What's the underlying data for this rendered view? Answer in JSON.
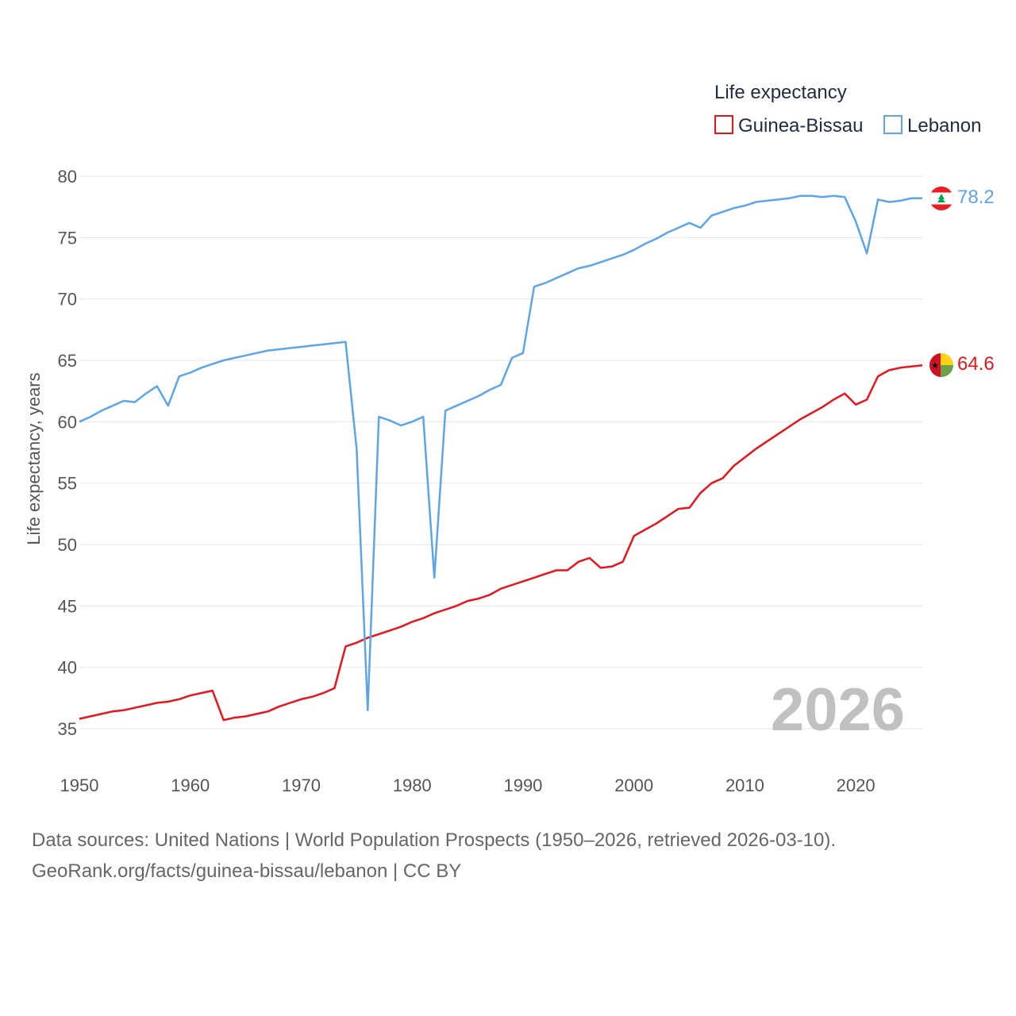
{
  "chart_data": {
    "type": "line",
    "legend_title": "Life expectancy",
    "ylabel": "Life expectancy, years",
    "xlabel": "",
    "xlim": [
      1950,
      2026
    ],
    "ylim": [
      33,
      81
    ],
    "x_ticks": [
      1950,
      1960,
      1970,
      1980,
      1990,
      2000,
      2010,
      2020
    ],
    "y_ticks": [
      35,
      40,
      45,
      50,
      55,
      60,
      65,
      70,
      75,
      80
    ],
    "year_label": "2026",
    "legend_position": "top-right",
    "x": [
      1950,
      1951,
      1952,
      1953,
      1954,
      1955,
      1956,
      1957,
      1958,
      1959,
      1960,
      1961,
      1962,
      1963,
      1964,
      1965,
      1966,
      1967,
      1968,
      1969,
      1970,
      1971,
      1972,
      1973,
      1974,
      1975,
      1976,
      1977,
      1978,
      1979,
      1980,
      1981,
      1982,
      1983,
      1984,
      1985,
      1986,
      1987,
      1988,
      1989,
      1990,
      1991,
      1992,
      1993,
      1994,
      1995,
      1996,
      1997,
      1998,
      1999,
      2000,
      2001,
      2002,
      2003,
      2004,
      2005,
      2006,
      2007,
      2008,
      2009,
      2010,
      2011,
      2012,
      2013,
      2014,
      2015,
      2016,
      2017,
      2018,
      2019,
      2020,
      2021,
      2022,
      2023,
      2024,
      2025,
      2026
    ],
    "series": [
      {
        "name": "Guinea-Bissau",
        "color": "#e8141c",
        "end_label": "64.6",
        "flag": "guinea-bissau-flag-icon",
        "values": [
          35.8,
          36.0,
          36.2,
          36.4,
          36.5,
          36.7,
          36.9,
          37.1,
          37.2,
          37.4,
          37.7,
          37.9,
          38.1,
          35.7,
          35.9,
          36.0,
          36.2,
          36.4,
          36.8,
          37.1,
          37.4,
          37.6,
          37.9,
          38.3,
          41.7,
          42.0,
          42.4,
          42.7,
          43.0,
          43.3,
          43.7,
          44.0,
          44.4,
          44.7,
          45.0,
          45.4,
          45.6,
          45.9,
          46.4,
          46.7,
          47.0,
          47.3,
          47.6,
          47.9,
          47.9,
          48.6,
          48.9,
          48.1,
          48.2,
          48.6,
          50.7,
          51.2,
          51.7,
          52.3,
          52.9,
          53.0,
          54.2,
          55.0,
          55.4,
          56.4,
          57.1,
          57.8,
          58.4,
          59.0,
          59.6,
          60.2,
          60.7,
          61.2,
          61.8,
          62.3,
          61.4,
          61.8,
          63.7,
          64.2,
          64.4,
          64.5,
          64.6
        ]
      },
      {
        "name": "Lebanon",
        "color": "#5ba5e8",
        "end_label": "78.2",
        "flag": "lebanon-flag-icon",
        "values": [
          60.0,
          60.4,
          60.9,
          61.3,
          61.7,
          61.6,
          62.3,
          62.9,
          61.3,
          63.7,
          64.0,
          64.4,
          64.7,
          65.0,
          65.2,
          65.4,
          65.6,
          65.8,
          65.9,
          66.0,
          66.1,
          66.2,
          66.3,
          66.4,
          66.5,
          57.8,
          36.5,
          60.4,
          60.1,
          59.7,
          60.0,
          60.4,
          47.3,
          60.9,
          61.3,
          61.7,
          62.1,
          62.6,
          63.0,
          65.2,
          65.6,
          71.0,
          71.3,
          71.7,
          72.1,
          72.5,
          72.7,
          73.0,
          73.3,
          73.6,
          74.0,
          74.5,
          74.9,
          75.4,
          75.8,
          76.2,
          75.8,
          76.8,
          77.1,
          77.4,
          77.6,
          77.9,
          78.0,
          78.1,
          78.2,
          78.4,
          78.4,
          78.3,
          78.4,
          78.3,
          76.3,
          73.7,
          78.1,
          77.9,
          78.0,
          78.2,
          78.2
        ]
      }
    ]
  },
  "footer": {
    "sources": "Data sources: United Nations | World Population Prospects (1950–2026, retrieved 2026-03-10).",
    "credit": "GeoRank.org/facts/guinea-bissau/lebanon | CC BY"
  }
}
